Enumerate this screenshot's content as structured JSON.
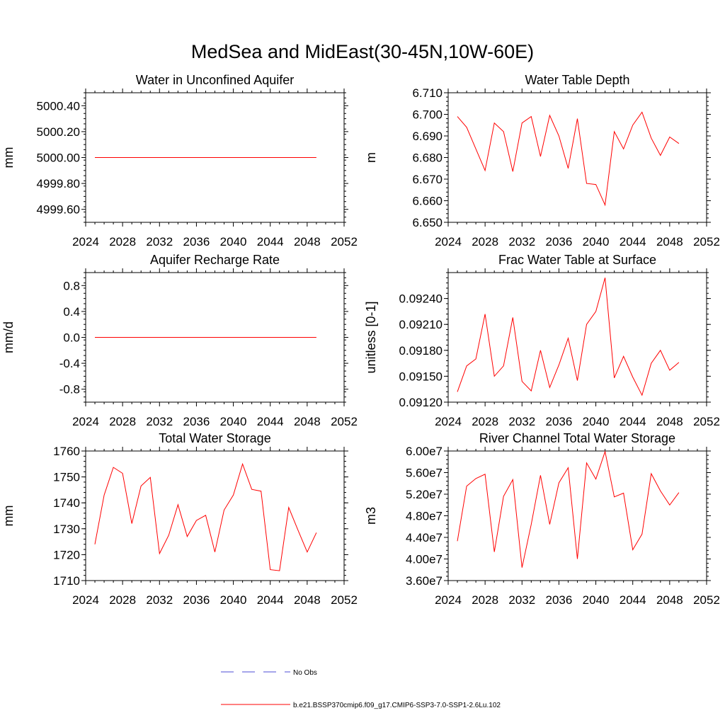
{
  "title": "MedSea and MidEast(30-45N,10W-60E)",
  "legend": {
    "obs_label": "No Obs",
    "obs_color": "#4b4bd6",
    "model_label": "b.e21.BSSP370cmip6.f09_g17.CMIP6-SSP3-7.0-SSP1-2.6Lu.102",
    "model_color": "#ff0000"
  },
  "chart_data": [
    {
      "type": "line",
      "title": "Water in Unconfined Aquifer",
      "ylabel": "mm",
      "xlim": [
        2024,
        2052
      ],
      "xticks": [
        "2024",
        "2028",
        "2032",
        "2036",
        "2040",
        "2044",
        "2048",
        "2052"
      ],
      "ylim": [
        4999.5,
        5000.5
      ],
      "yticks": [
        4999.6,
        4999.8,
        5000.0,
        5000.2,
        5000.4
      ],
      "yticklabels": [
        "4999.60",
        "4999.80",
        "5000.00",
        "5000.20",
        "5000.40"
      ],
      "x": [
        2025,
        2026,
        2027,
        2028,
        2029,
        2030,
        2031,
        2032,
        2033,
        2034,
        2035,
        2036,
        2037,
        2038,
        2039,
        2040,
        2041,
        2042,
        2043,
        2044,
        2045,
        2046,
        2047,
        2048,
        2049
      ],
      "series": [
        {
          "name": "b.e21.BSSP370cmip6.f09_g17.CMIP6-SSP3-7.0-SSP1-2.6Lu.102",
          "values": [
            5000,
            5000,
            5000,
            5000,
            5000,
            5000,
            5000,
            5000,
            5000,
            5000,
            5000,
            5000,
            5000,
            5000,
            5000,
            5000,
            5000,
            5000,
            5000,
            5000,
            5000,
            5000,
            5000,
            5000,
            5000
          ]
        }
      ]
    },
    {
      "type": "line",
      "title": "Water Table Depth",
      "ylabel": "m",
      "xlim": [
        2024,
        2052
      ],
      "xticks": [
        "2024",
        "2028",
        "2032",
        "2036",
        "2040",
        "2044",
        "2048",
        "2052"
      ],
      "ylim": [
        6.65,
        6.71
      ],
      "yticks": [
        6.65,
        6.66,
        6.67,
        6.68,
        6.69,
        6.7,
        6.71
      ],
      "yticklabels": [
        "6.650",
        "6.660",
        "6.670",
        "6.680",
        "6.690",
        "6.700",
        "6.710"
      ],
      "x": [
        2025,
        2026,
        2027,
        2028,
        2029,
        2030,
        2031,
        2032,
        2033,
        2034,
        2035,
        2036,
        2037,
        2038,
        2039,
        2040,
        2041,
        2042,
        2043,
        2044,
        2045,
        2046,
        2047,
        2048,
        2049
      ],
      "series": [
        {
          "name": "b.e21.BSSP370cmip6.f09_g17.CMIP6-SSP3-7.0-SSP1-2.6Lu.102",
          "values": [
            6.699,
            6.694,
            6.684,
            6.674,
            6.696,
            6.692,
            6.6735,
            6.696,
            6.699,
            6.6805,
            6.6995,
            6.69,
            6.675,
            6.698,
            6.668,
            6.6675,
            6.658,
            6.692,
            6.684,
            6.695,
            6.701,
            6.689,
            6.681,
            6.6895,
            6.6865
          ]
        }
      ]
    },
    {
      "type": "line",
      "title": "Aquifer Recharge Rate",
      "ylabel": "mm/d",
      "xlim": [
        2024,
        2052
      ],
      "xticks": [
        "2024",
        "2028",
        "2032",
        "2036",
        "2040",
        "2044",
        "2048",
        "2052"
      ],
      "ylim": [
        -1.0,
        1.0
      ],
      "yticks": [
        -0.8,
        -0.4,
        0.0,
        0.4,
        0.8
      ],
      "yticklabels": [
        "-0.8",
        "-0.4",
        "0.0",
        "0.4",
        "0.8"
      ],
      "x": [
        2025,
        2026,
        2027,
        2028,
        2029,
        2030,
        2031,
        2032,
        2033,
        2034,
        2035,
        2036,
        2037,
        2038,
        2039,
        2040,
        2041,
        2042,
        2043,
        2044,
        2045,
        2046,
        2047,
        2048,
        2049
      ],
      "series": [
        {
          "name": "b.e21.BSSP370cmip6.f09_g17.CMIP6-SSP3-7.0-SSP1-2.6Lu.102",
          "values": [
            0,
            0,
            0,
            0,
            0,
            0,
            0,
            0,
            0,
            0,
            0,
            0,
            0,
            0,
            0,
            0,
            0,
            0,
            0,
            0,
            0,
            0,
            0,
            0,
            0
          ]
        }
      ]
    },
    {
      "type": "line",
      "title": "Frac Water Table at Surface",
      "ylabel": "unitless [0-1]",
      "xlim": [
        2024,
        2052
      ],
      "xticks": [
        "2024",
        "2028",
        "2032",
        "2036",
        "2040",
        "2044",
        "2048",
        "2052"
      ],
      "ylim": [
        0.0912,
        0.0927
      ],
      "yticks": [
        0.0912,
        0.0915,
        0.0918,
        0.0921,
        0.0924
      ],
      "yticklabels": [
        "0.09120",
        "0.09150",
        "0.09180",
        "0.09210",
        "0.09240"
      ],
      "x": [
        2025,
        2026,
        2027,
        2028,
        2029,
        2030,
        2031,
        2032,
        2033,
        2034,
        2035,
        2036,
        2037,
        2038,
        2039,
        2040,
        2041,
        2042,
        2043,
        2044,
        2045,
        2046,
        2047,
        2048,
        2049
      ],
      "series": [
        {
          "name": "b.e21.BSSP370cmip6.f09_g17.CMIP6-SSP3-7.0-SSP1-2.6Lu.102",
          "values": [
            0.09132,
            0.09162,
            0.0917,
            0.09222,
            0.0915,
            0.09162,
            0.09218,
            0.09144,
            0.09133,
            0.0918,
            0.09137,
            0.09163,
            0.09194,
            0.09145,
            0.0921,
            0.09225,
            0.09264,
            0.09148,
            0.09173,
            0.09149,
            0.09128,
            0.09165,
            0.0918,
            0.09157,
            0.09166
          ]
        }
      ]
    },
    {
      "type": "line",
      "title": "Total Water Storage",
      "ylabel": "mm",
      "xlim": [
        2024,
        2052
      ],
      "xticks": [
        "2024",
        "2028",
        "2032",
        "2036",
        "2040",
        "2044",
        "2048",
        "2052"
      ],
      "ylim": [
        1710,
        1760
      ],
      "yticks": [
        1710,
        1720,
        1730,
        1740,
        1750,
        1760
      ],
      "yticklabels": [
        "1710",
        "1720",
        "1730",
        "1740",
        "1750",
        "1760"
      ],
      "x": [
        2025,
        2026,
        2027,
        2028,
        2029,
        2030,
        2031,
        2032,
        2033,
        2034,
        2035,
        2036,
        2037,
        2038,
        2039,
        2040,
        2041,
        2042,
        2043,
        2044,
        2045,
        2046,
        2047,
        2048,
        2049
      ],
      "series": [
        {
          "name": "b.e21.BSSP370cmip6.f09_g17.CMIP6-SSP3-7.0-SSP1-2.6Lu.102",
          "values": [
            1724,
            1743,
            1753.7,
            1751.4,
            1732,
            1746.5,
            1749.8,
            1720.4,
            1727.5,
            1739.3,
            1727,
            1733.2,
            1735.2,
            1721,
            1737.2,
            1743,
            1755,
            1745.2,
            1744.5,
            1714.2,
            1713.8,
            1738.2,
            1729.5,
            1721,
            1728.5
          ]
        }
      ]
    },
    {
      "type": "line",
      "title": "River Channel Total Water Storage",
      "ylabel": "m3",
      "xlim": [
        2024,
        2052
      ],
      "xticks": [
        "2024",
        "2028",
        "2032",
        "2036",
        "2040",
        "2044",
        "2048",
        "2052"
      ],
      "ylim": [
        36000000,
        60000000
      ],
      "yticks": [
        36000000,
        40000000,
        44000000,
        48000000,
        52000000,
        56000000,
        60000000
      ],
      "yticklabels": [
        "3.60e7",
        "4.00e7",
        "4.40e7",
        "4.80e7",
        "5.20e7",
        "5.60e7",
        "6.00e7"
      ],
      "x": [
        2025,
        2026,
        2027,
        2028,
        2029,
        2030,
        2031,
        2032,
        2033,
        2034,
        2035,
        2036,
        2037,
        2038,
        2039,
        2040,
        2041,
        2042,
        2043,
        2044,
        2045,
        2046,
        2047,
        2048,
        2049
      ],
      "series": [
        {
          "name": "b.e21.BSSP370cmip6.f09_g17.CMIP6-SSP3-7.0-SSP1-2.6Lu.102",
          "values": [
            43300000,
            53500000,
            54900000,
            55700000,
            41300000,
            51600000,
            54700000,
            38400000,
            46400000,
            55500000,
            46400000,
            54100000,
            56900000,
            40000000,
            57800000,
            54800000,
            59900000,
            51500000,
            52200000,
            41700000,
            44600000,
            55800000,
            52600000,
            50000000,
            52300000
          ]
        }
      ]
    }
  ]
}
